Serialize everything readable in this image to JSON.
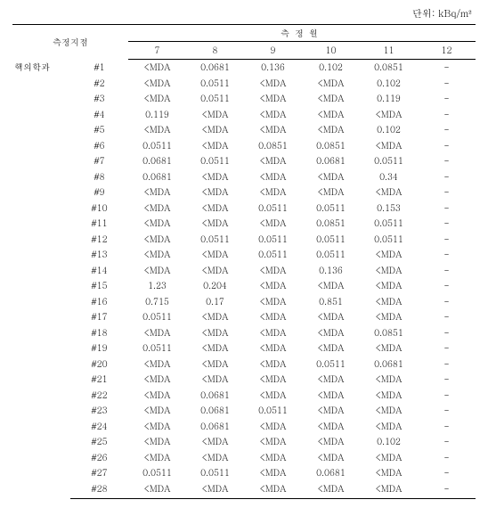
{
  "unit_label": "단위: kBq/m²",
  "header": {
    "location": "측정지점",
    "months_title": "측정월",
    "months": [
      "7",
      "8",
      "9",
      "10",
      "11",
      "12"
    ]
  },
  "location_name": "핵의학과",
  "rows": [
    {
      "id": "#1",
      "v": [
        "<MDA",
        "0.0681",
        "0.136",
        "0.102",
        "0.0851",
        "-"
      ]
    },
    {
      "id": "#2",
      "v": [
        "<MDA",
        "0.0511",
        "<MDA",
        "<MDA",
        "0.102",
        "-"
      ]
    },
    {
      "id": "#3",
      "v": [
        "<MDA",
        "0.0511",
        "<MDA",
        "<MDA",
        "0.119",
        "-"
      ]
    },
    {
      "id": "#4",
      "v": [
        "0.119",
        "<MDA",
        "<MDA",
        "<MDA",
        "<MDA",
        "-"
      ]
    },
    {
      "id": "#5",
      "v": [
        "<MDA",
        "<MDA",
        "<MDA",
        "<MDA",
        "0.102",
        "-"
      ]
    },
    {
      "id": "#6",
      "v": [
        "0.0511",
        "<MDA",
        "0.0851",
        "0.0851",
        "<MDA",
        "-"
      ]
    },
    {
      "id": "#7",
      "v": [
        "0.0681",
        "0.0511",
        "<MDA",
        "0.0681",
        "0.0511",
        "-"
      ]
    },
    {
      "id": "#8",
      "v": [
        "0.0681",
        "<MDA",
        "<MDA",
        "<MDA",
        "0.34",
        "-"
      ]
    },
    {
      "id": "#9",
      "v": [
        "<MDA",
        "<MDA",
        "<MDA",
        "<MDA",
        "<MDA",
        "-"
      ]
    },
    {
      "id": "#10",
      "v": [
        "<MDA",
        "<MDA",
        "0.0511",
        "0.0511",
        "0.153",
        "-"
      ]
    },
    {
      "id": "#11",
      "v": [
        "<MDA",
        "<MDA",
        "<MDA",
        "0.0851",
        "0.0511",
        "-"
      ]
    },
    {
      "id": "#12",
      "v": [
        "<MDA",
        "0.0511",
        "0.0511",
        "0.0511",
        "0.0511",
        "-"
      ]
    },
    {
      "id": "#13",
      "v": [
        "<MDA",
        "<MDA",
        "0.0511",
        "0.0511",
        "<MDA",
        "-"
      ]
    },
    {
      "id": "#14",
      "v": [
        "<MDA",
        "<MDA",
        "<MDA",
        "0.136",
        "<MDA",
        "-"
      ]
    },
    {
      "id": "#15",
      "v": [
        "1.23",
        "0.204",
        "<MDA",
        "<MDA",
        "<MDA",
        "-"
      ]
    },
    {
      "id": "#16",
      "v": [
        "0.715",
        "0.17",
        "<MDA",
        "0.851",
        "<MDA",
        "-"
      ]
    },
    {
      "id": "#17",
      "v": [
        "0.0511",
        "<MDA",
        "<MDA",
        "<MDA",
        "<MDA",
        "-"
      ]
    },
    {
      "id": "#18",
      "v": [
        "<MDA",
        "<MDA",
        "<MDA",
        "<MDA",
        "0.0851",
        "-"
      ]
    },
    {
      "id": "#19",
      "v": [
        "0.0511",
        "<MDA",
        "<MDA",
        "<MDA",
        "<MDA",
        "-"
      ]
    },
    {
      "id": "#20",
      "v": [
        "<MDA",
        "<MDA",
        "<MDA",
        "0.0511",
        "0.0681",
        "-"
      ]
    },
    {
      "id": "#21",
      "v": [
        "<MDA",
        "<MDA",
        "<MDA",
        "<MDA",
        "<MDA",
        "-"
      ]
    },
    {
      "id": "#22",
      "v": [
        "<MDA",
        "0.0681",
        "<MDA",
        "<MDA",
        "<MDA",
        "-"
      ]
    },
    {
      "id": "#23",
      "v": [
        "<MDA",
        "0.0681",
        "0.0511",
        "<MDA",
        "<MDA",
        "-"
      ]
    },
    {
      "id": "#24",
      "v": [
        "<MDA",
        "0.0681",
        "<MDA",
        "<MDA",
        "<MDA",
        "-"
      ]
    },
    {
      "id": "#25",
      "v": [
        "<MDA",
        "<MDA",
        "<MDA",
        "<MDA",
        "0.102",
        "-"
      ]
    },
    {
      "id": "#26",
      "v": [
        "<MDA",
        "<MDA",
        "<MDA",
        "<MDA",
        "<MDA",
        "-"
      ]
    },
    {
      "id": "#27",
      "v": [
        "0.0511",
        "0.0511",
        "<MDA",
        "0.0681",
        "<MDA",
        "-"
      ]
    },
    {
      "id": "#28",
      "v": [
        "<MDA",
        "<MDA",
        "<MDA",
        "<MDA",
        "<MDA",
        "-"
      ]
    }
  ]
}
